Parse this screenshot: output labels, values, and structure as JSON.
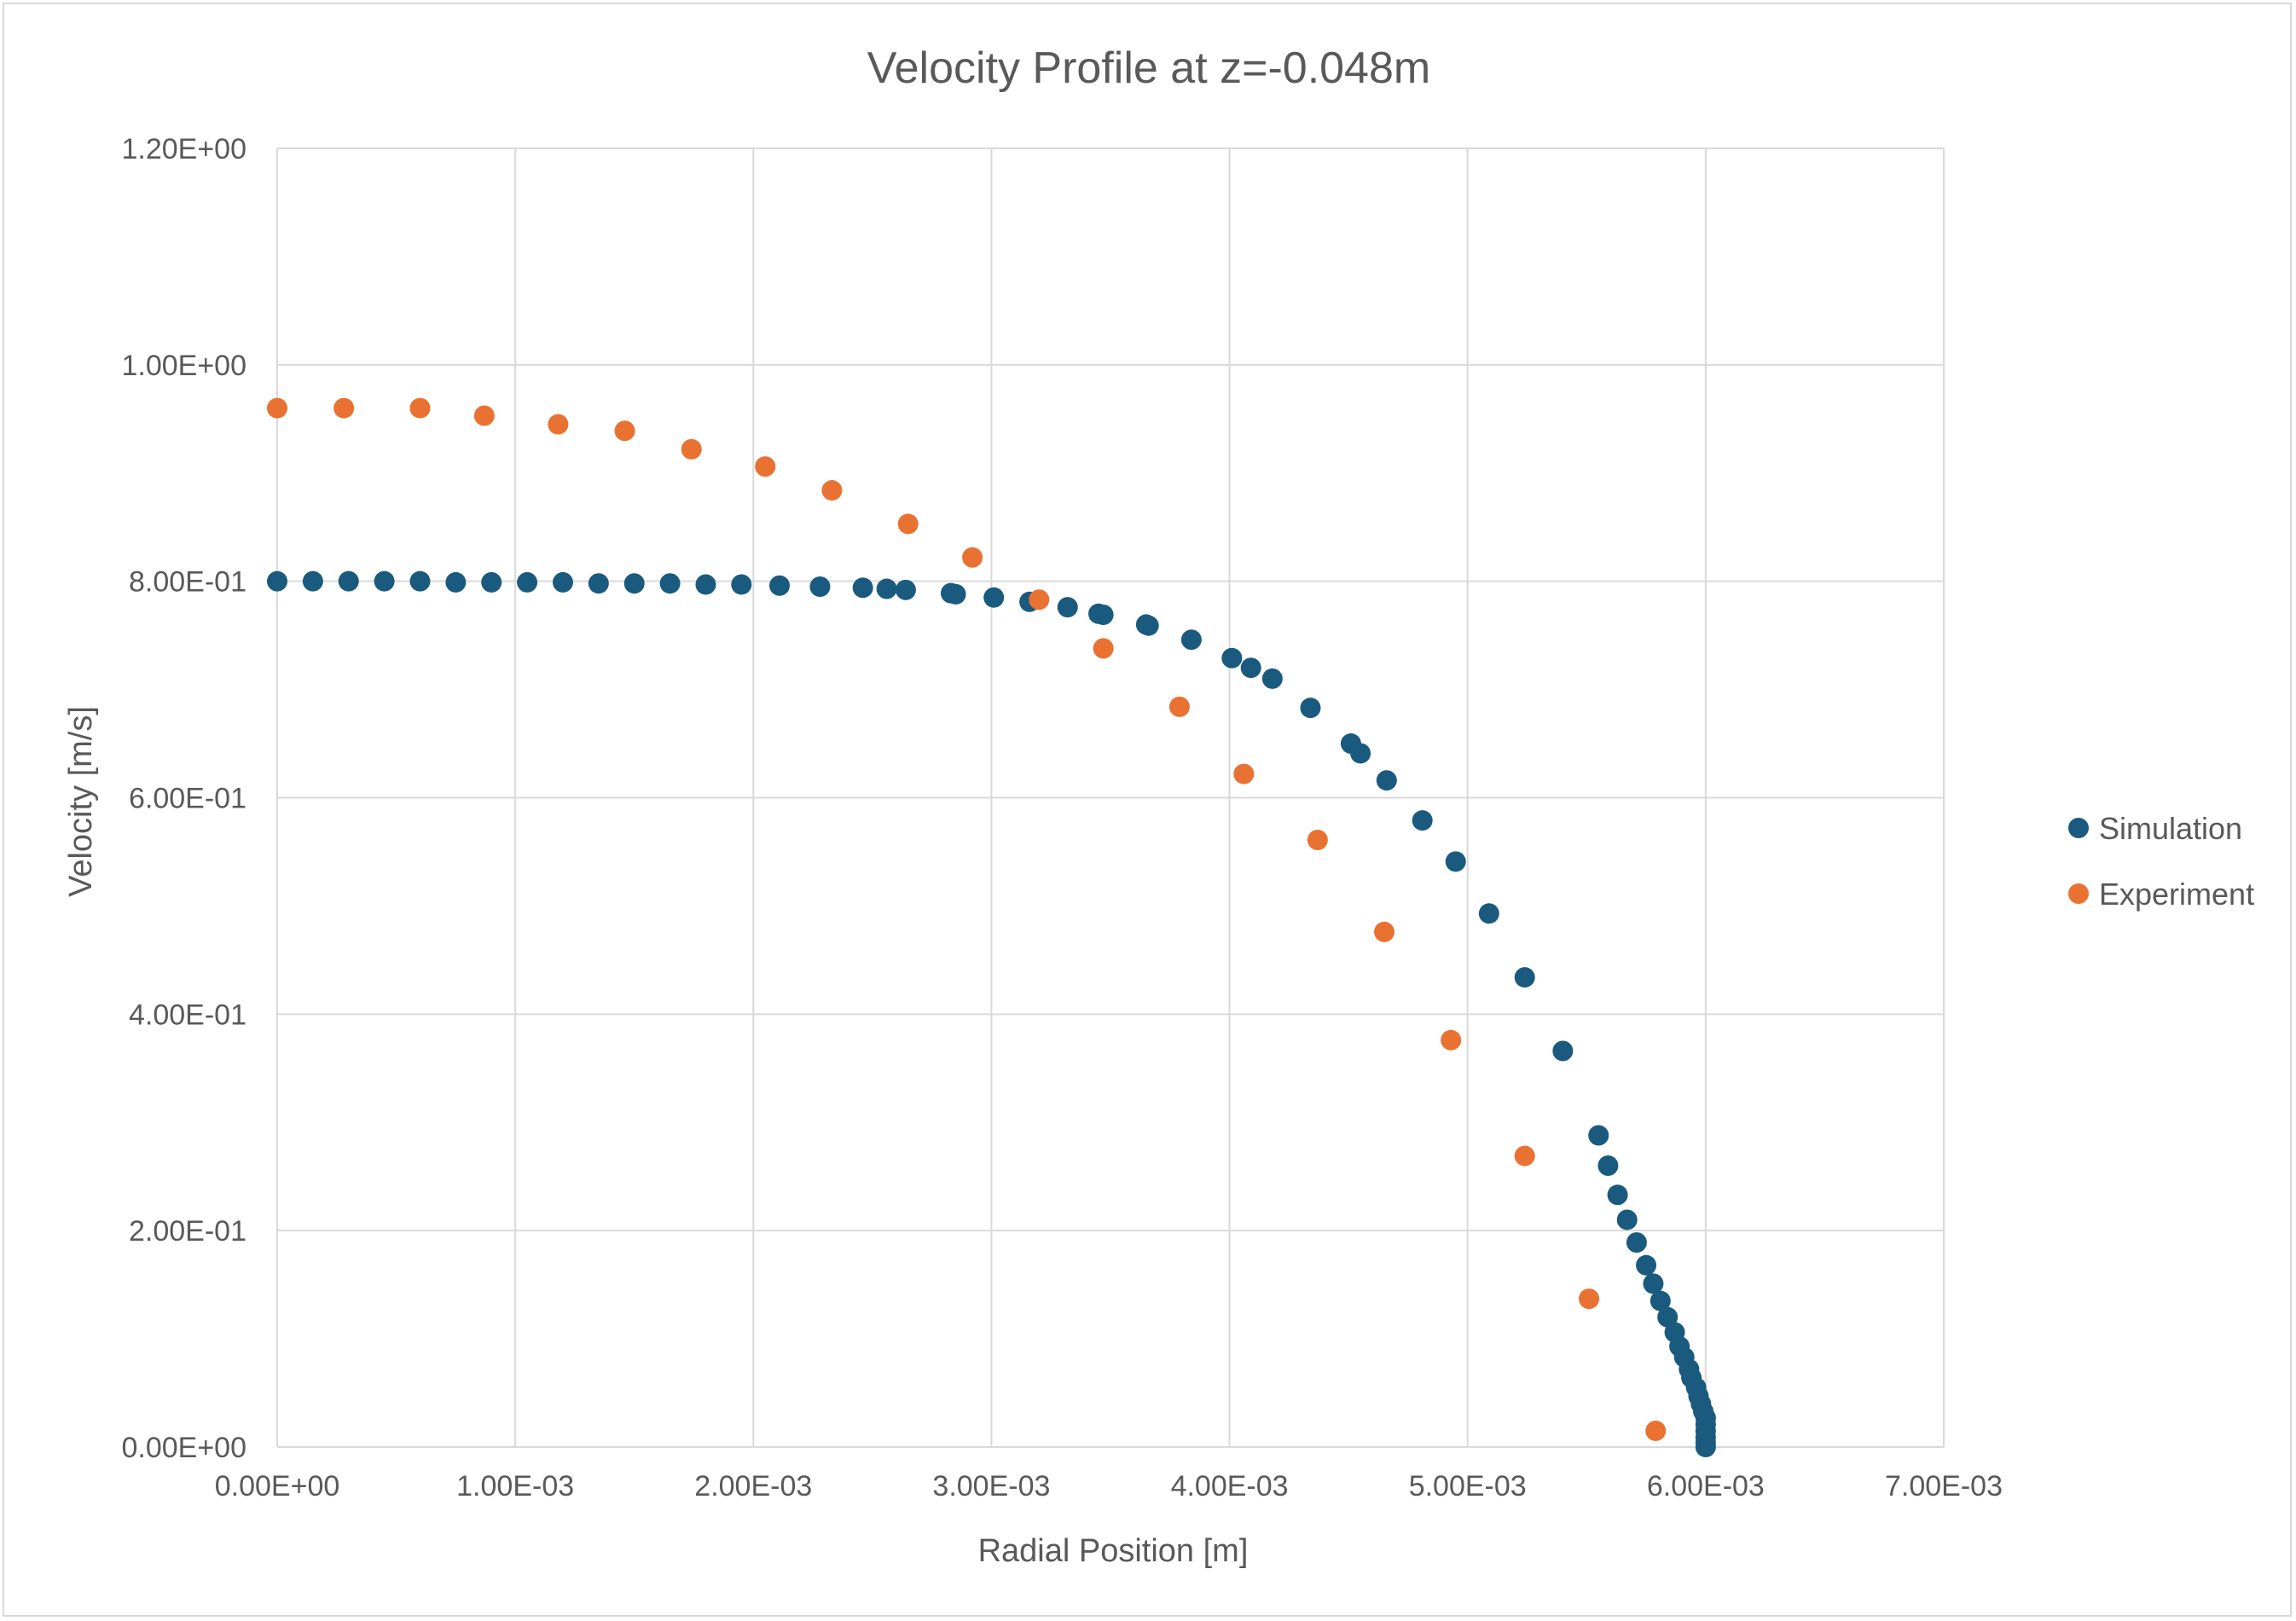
{
  "chart_data": {
    "type": "scatter",
    "title": "Velocity Profile at z=-0.048m",
    "xlabel": "Radial Position [m]",
    "ylabel": "Velocity [m/s]",
    "xlim": [
      0,
      0.007
    ],
    "ylim": [
      0,
      1.2
    ],
    "x_ticks": [
      "0.00E+00",
      "1.00E-03",
      "2.00E-03",
      "3.00E-03",
      "4.00E-03",
      "5.00E-03",
      "6.00E-03",
      "7.00E-03"
    ],
    "y_ticks": [
      "0.00E+00",
      "2.00E-01",
      "4.00E-01",
      "6.00E-01",
      "8.00E-01",
      "1.00E+00",
      "1.20E+00"
    ],
    "grid": true,
    "legend_position": "right",
    "series": [
      {
        "name": "Simulation",
        "color": "#1a5a7e",
        "points": [
          [
            0.0,
            0.8
          ],
          [
            0.00015,
            0.8
          ],
          [
            0.0003,
            0.8
          ],
          [
            0.00045,
            0.8
          ],
          [
            0.0006,
            0.8
          ],
          [
            0.00075,
            0.799
          ],
          [
            0.0009,
            0.799
          ],
          [
            0.00105,
            0.799
          ],
          [
            0.0012,
            0.799
          ],
          [
            0.00135,
            0.798
          ],
          [
            0.0015,
            0.798
          ],
          [
            0.00165,
            0.798
          ],
          [
            0.0018,
            0.797
          ],
          [
            0.00195,
            0.797
          ],
          [
            0.00211,
            0.796
          ],
          [
            0.00228,
            0.795
          ],
          [
            0.00246,
            0.794
          ],
          [
            0.00256,
            0.793
          ],
          [
            0.00264,
            0.792
          ],
          [
            0.00283,
            0.789
          ],
          [
            0.00285,
            0.788
          ],
          [
            0.00301,
            0.785
          ],
          [
            0.00316,
            0.781
          ],
          [
            0.00332,
            0.776
          ],
          [
            0.00345,
            0.77
          ],
          [
            0.00347,
            0.769
          ],
          [
            0.00365,
            0.76
          ],
          [
            0.00366,
            0.759
          ],
          [
            0.00384,
            0.746
          ],
          [
            0.00401,
            0.729
          ],
          [
            0.00409,
            0.72
          ],
          [
            0.00418,
            0.71
          ],
          [
            0.00434,
            0.683
          ],
          [
            0.00451,
            0.65
          ],
          [
            0.00455,
            0.641
          ],
          [
            0.00466,
            0.616
          ],
          [
            0.00481,
            0.579
          ],
          [
            0.00495,
            0.541
          ],
          [
            0.00509,
            0.493
          ],
          [
            0.00524,
            0.434
          ],
          [
            0.0054,
            0.366
          ],
          [
            0.00555,
            0.288
          ],
          [
            0.00559,
            0.26
          ],
          [
            0.00563,
            0.233
          ],
          [
            0.00567,
            0.21
          ],
          [
            0.00571,
            0.189
          ],
          [
            0.00575,
            0.168
          ],
          [
            0.00578,
            0.151
          ],
          [
            0.00581,
            0.135
          ],
          [
            0.00584,
            0.12
          ],
          [
            0.00587,
            0.106
          ],
          [
            0.00589,
            0.093
          ],
          [
            0.00591,
            0.083
          ],
          [
            0.00593,
            0.072
          ],
          [
            0.00594,
            0.064
          ],
          [
            0.00596,
            0.055
          ],
          [
            0.00597,
            0.047
          ],
          [
            0.00598,
            0.04
          ],
          [
            0.00599,
            0.033
          ],
          [
            0.006,
            0.027
          ],
          [
            0.006,
            0.021
          ],
          [
            0.006,
            0.015
          ],
          [
            0.006,
            0.009
          ],
          [
            0.006,
            0.004
          ],
          [
            0.006,
            0.0
          ]
        ]
      },
      {
        "name": "Experiment",
        "color": "#e97132",
        "points": [
          [
            0.0,
            0.96
          ],
          [
            0.00028,
            0.96
          ],
          [
            0.0006,
            0.96
          ],
          [
            0.00087,
            0.953
          ],
          [
            0.00118,
            0.945
          ],
          [
            0.00146,
            0.939
          ],
          [
            0.00174,
            0.922
          ],
          [
            0.00205,
            0.906
          ],
          [
            0.00233,
            0.884
          ],
          [
            0.00265,
            0.853
          ],
          [
            0.00292,
            0.822
          ],
          [
            0.0032,
            0.783
          ],
          [
            0.00347,
            0.738
          ],
          [
            0.00379,
            0.684
          ],
          [
            0.00406,
            0.622
          ],
          [
            0.00437,
            0.561
          ],
          [
            0.00465,
            0.476
          ],
          [
            0.00493,
            0.376
          ],
          [
            0.00524,
            0.269
          ],
          [
            0.00551,
            0.137
          ],
          [
            0.00579,
            0.015
          ]
        ]
      }
    ]
  }
}
